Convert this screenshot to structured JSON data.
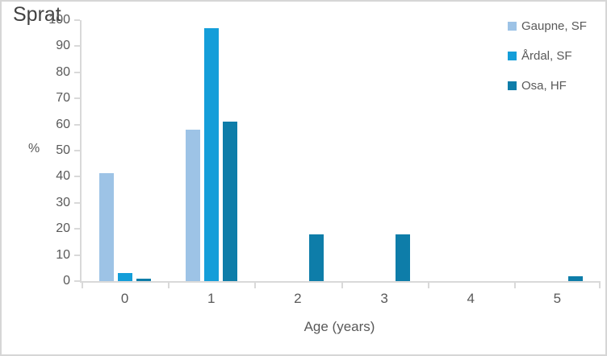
{
  "chart_data": {
    "type": "bar",
    "title": "Sprat",
    "xlabel": "Age (years)",
    "ylabel": "%",
    "categories": [
      "0",
      "1",
      "2",
      "3",
      "4",
      "5"
    ],
    "series": [
      {
        "name": "Gaupne, SF",
        "color": "#9dc3e6",
        "values": [
          41.5,
          58,
          0,
          0,
          0,
          0
        ]
      },
      {
        "name": "Årdal, SF",
        "color": "#149ed9",
        "values": [
          3,
          97,
          0,
          0,
          0,
          0
        ]
      },
      {
        "name": "Osa, HF",
        "color": "#0e7da9",
        "values": [
          1,
          61,
          18,
          18,
          0,
          2
        ]
      }
    ],
    "ylim": [
      0,
      100
    ],
    "ytick_step": 10,
    "grid": false,
    "legend_position": "top-right"
  },
  "colors": {
    "axis": "#d9d9d9",
    "tick_label": "#595959",
    "title_text": "#424242",
    "frame_border": "#d6d6d6",
    "background": "#ffffff"
  }
}
